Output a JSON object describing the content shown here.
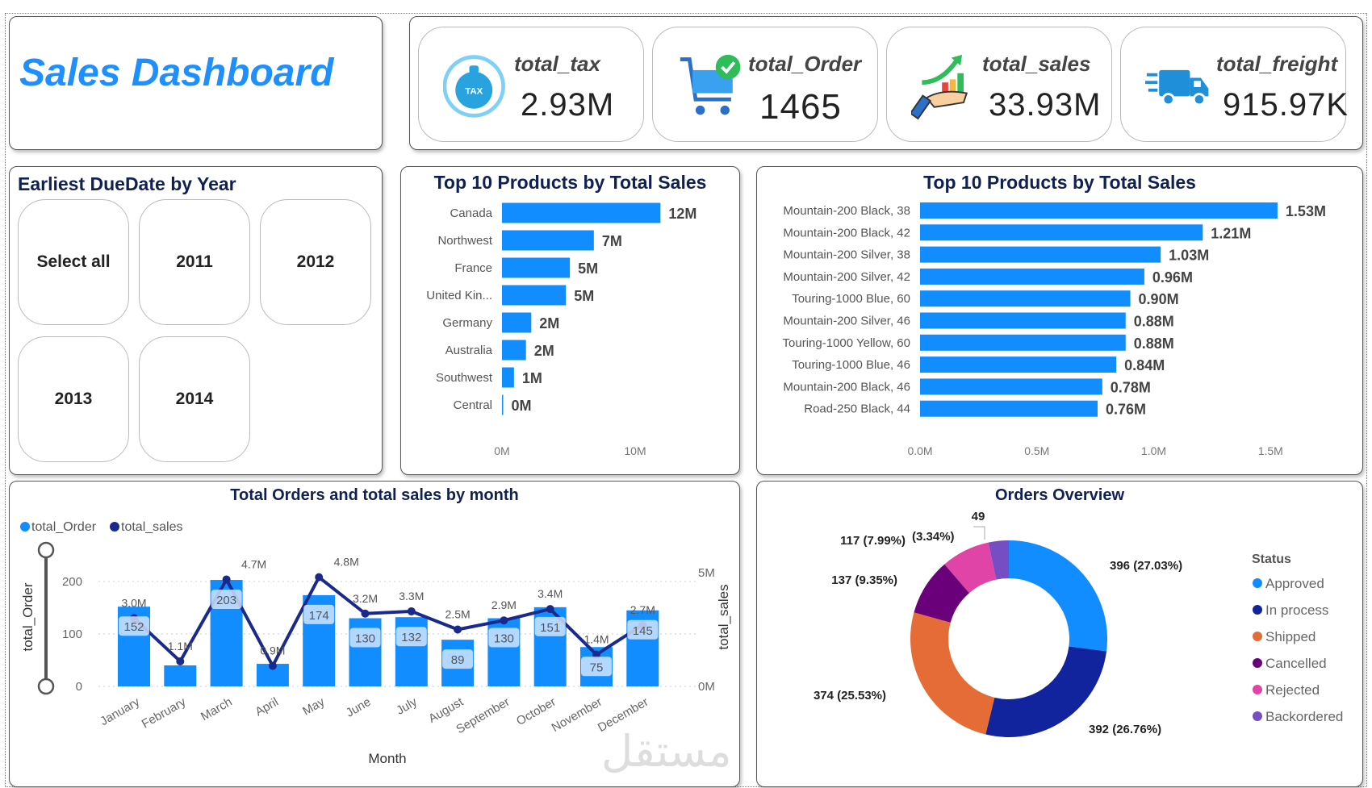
{
  "header": {
    "title": "Sales Dashboard"
  },
  "kpis": [
    {
      "label": "total_tax",
      "value": "2.93M",
      "icon": "tax-bag-icon"
    },
    {
      "label": "total_Order",
      "value": "1465",
      "icon": "shopping-cart-check-icon"
    },
    {
      "label": "total_sales",
      "value": "33.93M",
      "icon": "hand-growth-chart-icon"
    },
    {
      "label": "total_freight",
      "value": "915.97K",
      "icon": "delivery-truck-icon"
    }
  ],
  "slicer": {
    "title": "Earliest DueDate by Year",
    "options": [
      "Select all",
      "2011",
      "2012",
      "2013",
      "2014"
    ]
  },
  "colors": {
    "bar": "#118DFF",
    "line": "#1a2a8c",
    "title": "#102050",
    "brand": "#1e8fff"
  },
  "chart_data": [
    {
      "type": "bar",
      "orientation": "horizontal",
      "title": "Top 10 Products by Total Sales",
      "categories": [
        "Canada",
        "Northwest",
        "France",
        "United Kin...",
        "Germany",
        "Australia",
        "Southwest",
        "Central"
      ],
      "values": [
        11.9,
        6.9,
        5.1,
        4.8,
        2.2,
        1.8,
        0.9,
        0.02
      ],
      "data_labels": [
        "12M",
        "7M",
        "5M",
        "5M",
        "2M",
        "2M",
        "1M",
        "0M"
      ],
      "xticks": [
        "0M",
        "10M"
      ],
      "xtick_values": [
        0,
        10
      ],
      "unit": "M"
    },
    {
      "type": "bar",
      "orientation": "horizontal",
      "title": "Top 10 Products by Total Sales",
      "categories": [
        "Mountain-200 Black, 38",
        "Mountain-200 Black, 42",
        "Mountain-200 Silver, 38",
        "Mountain-200 Silver, 42",
        "Touring-1000 Blue, 60",
        "Mountain-200 Silver, 46",
        "Touring-1000 Yellow, 60",
        "Touring-1000 Blue, 46",
        "Mountain-200 Black, 46",
        "Road-250 Black, 44"
      ],
      "values": [
        1.53,
        1.21,
        1.03,
        0.96,
        0.9,
        0.88,
        0.88,
        0.84,
        0.78,
        0.76
      ],
      "data_labels": [
        "1.53M",
        "1.21M",
        "1.03M",
        "0.96M",
        "0.90M",
        "0.88M",
        "0.88M",
        "0.84M",
        "0.78M",
        "0.76M"
      ],
      "xticks": [
        "0.0M",
        "0.5M",
        "1.0M",
        "1.5M"
      ],
      "xtick_values": [
        0,
        0.5,
        1.0,
        1.5
      ],
      "unit": "M"
    },
    {
      "type": "bar+line",
      "title": "Total Orders and total sales by month",
      "xlabel": "Month",
      "ylabel": "total_Order",
      "y2label": "total_sales",
      "legend": [
        "total_Order",
        "total_sales"
      ],
      "legend_position": "top-left",
      "categories": [
        "January",
        "February",
        "March",
        "April",
        "May",
        "June",
        "July",
        "August",
        "September",
        "October",
        "November",
        "December"
      ],
      "series": [
        {
          "name": "total_Order",
          "type": "bar",
          "values": [
            152,
            40,
            203,
            43,
            174,
            130,
            132,
            89,
            130,
            151,
            75,
            145
          ],
          "labels": [
            "152",
            "",
            "203",
            "",
            "174",
            "130",
            "132",
            "89",
            "130",
            "151",
            "75",
            "145"
          ]
        },
        {
          "name": "total_sales",
          "type": "line",
          "values": [
            3.0,
            1.1,
            4.7,
            0.9,
            4.8,
            3.2,
            3.3,
            2.5,
            2.9,
            3.4,
            1.4,
            2.7
          ],
          "labels": [
            "3.0M",
            "1.1M",
            "4.7M",
            "0.9M",
            "4.8M",
            "3.2M",
            "3.3M",
            "2.5M",
            "2.9M",
            "3.4M",
            "1.4M",
            "2.7M"
          ]
        }
      ],
      "yticks": [
        "0",
        "100",
        "200"
      ],
      "ytick_values": [
        0,
        100,
        200
      ],
      "y2ticks": [
        "0M",
        "5M"
      ],
      "y2tick_values": [
        0,
        5
      ],
      "grid": true
    },
    {
      "type": "pie",
      "donut": true,
      "title": "Orders Overview",
      "legend_title": "Status",
      "legend_position": "right",
      "categories": [
        "Approved",
        "In process",
        "Shipped",
        "Cancelled",
        "Rejected",
        "Backordered"
      ],
      "values": [
        396,
        392,
        374,
        137,
        117,
        49
      ],
      "percents": [
        27.03,
        26.76,
        25.53,
        9.35,
        7.99,
        3.34
      ],
      "data_labels": [
        "396 (27.03%)",
        "392 (26.76%)",
        "374 (25.53%)",
        "137 (9.35%)",
        "117 (7.99%)",
        "49 (3.34%)"
      ],
      "colors": [
        "#118DFF",
        "#12239E",
        "#E66C37",
        "#6B007B",
        "#E044A7",
        "#744EC2"
      ]
    }
  ],
  "watermark": "مستقل"
}
